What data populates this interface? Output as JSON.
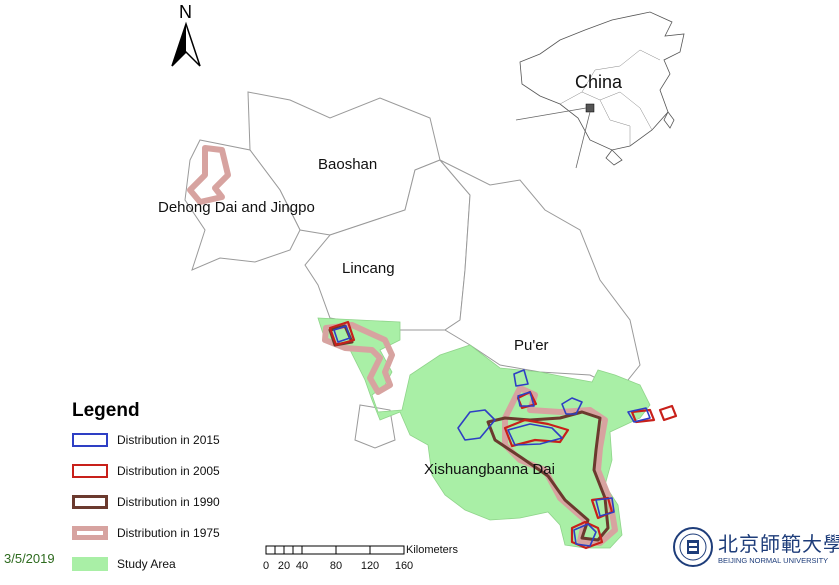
{
  "map": {
    "north_arrow": "N",
    "regions": {
      "baoshan": "Baoshan",
      "dehong": "Dehong Dai and Jingpo",
      "lincang": "Lincang",
      "puer": "Pu'er",
      "xishuangbanna": "Xishuangbanna Dai"
    },
    "inset_label": "China"
  },
  "legend": {
    "title": "Legend",
    "items": [
      {
        "label": "Distribution in 2015",
        "color": "#2e3fc4"
      },
      {
        "label": "Distribution in 2005",
        "color": "#c8201a"
      },
      {
        "label": "Distribution in 1990",
        "color": "#6b3a2e"
      },
      {
        "label": "Distribution in 1975",
        "color": "#d7a3a0"
      },
      {
        "label": "Study Area",
        "color": "#a9efa6"
      }
    ]
  },
  "scale_bar": {
    "unit": "Kilometers",
    "ticks": [
      "0",
      "20",
      "40",
      "80",
      "120",
      "160"
    ]
  },
  "footer": {
    "date": "3/5/2019",
    "university_name": "北京師範大學",
    "university_sub": "BEIJING NORMAL UNIVERSITY"
  }
}
